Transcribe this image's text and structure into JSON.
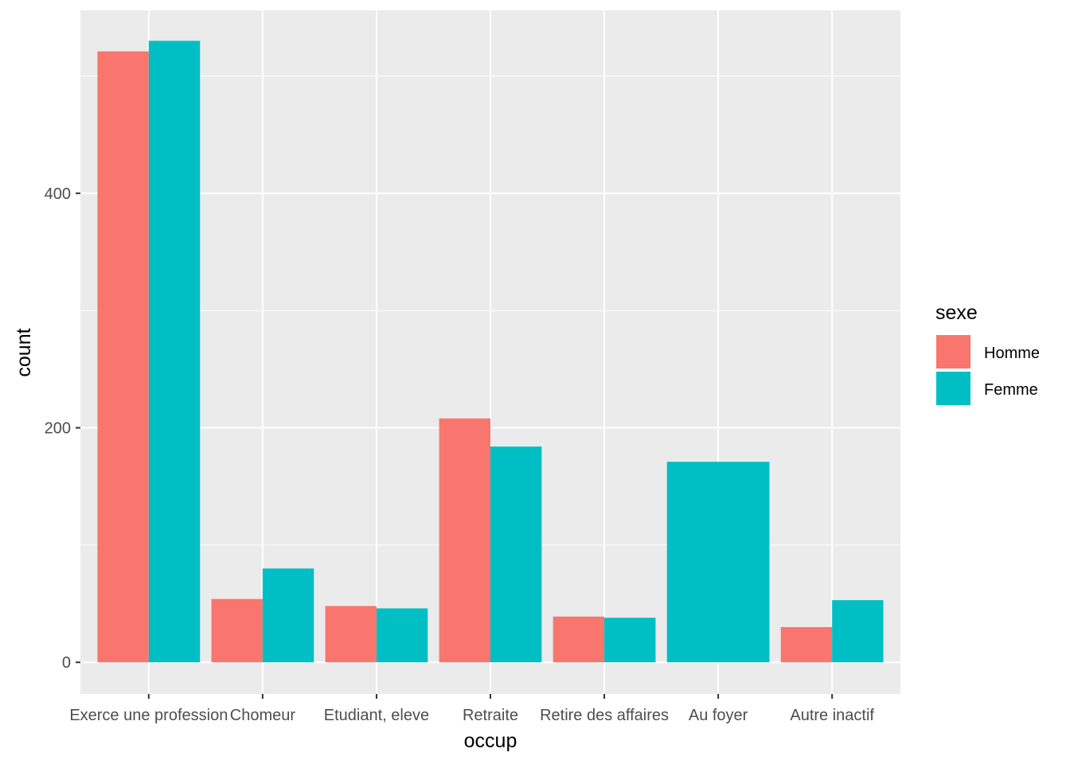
{
  "chart_data": {
    "type": "bar",
    "xlabel": "occup",
    "ylabel": "count",
    "categories": [
      "Exerce une profession",
      "Chomeur",
      "Etudiant, eleve",
      "Retraite",
      "Retire des affaires",
      "Au foyer",
      "Autre inactif"
    ],
    "series": [
      {
        "name": "Homme",
        "color": "#F8766D",
        "values": [
          521,
          54,
          48,
          208,
          39,
          null,
          30
        ]
      },
      {
        "name": "Femme",
        "color": "#00BFC4",
        "values": [
          530,
          80,
          46,
          184,
          38,
          171,
          53
        ]
      }
    ],
    "ylim": [
      -27,
      556
    ],
    "yticks": [
      0,
      200,
      400
    ],
    "legend_title": "sexe",
    "legend_position": "right",
    "grid": true,
    "panel_color": "#EBEBEB"
  }
}
